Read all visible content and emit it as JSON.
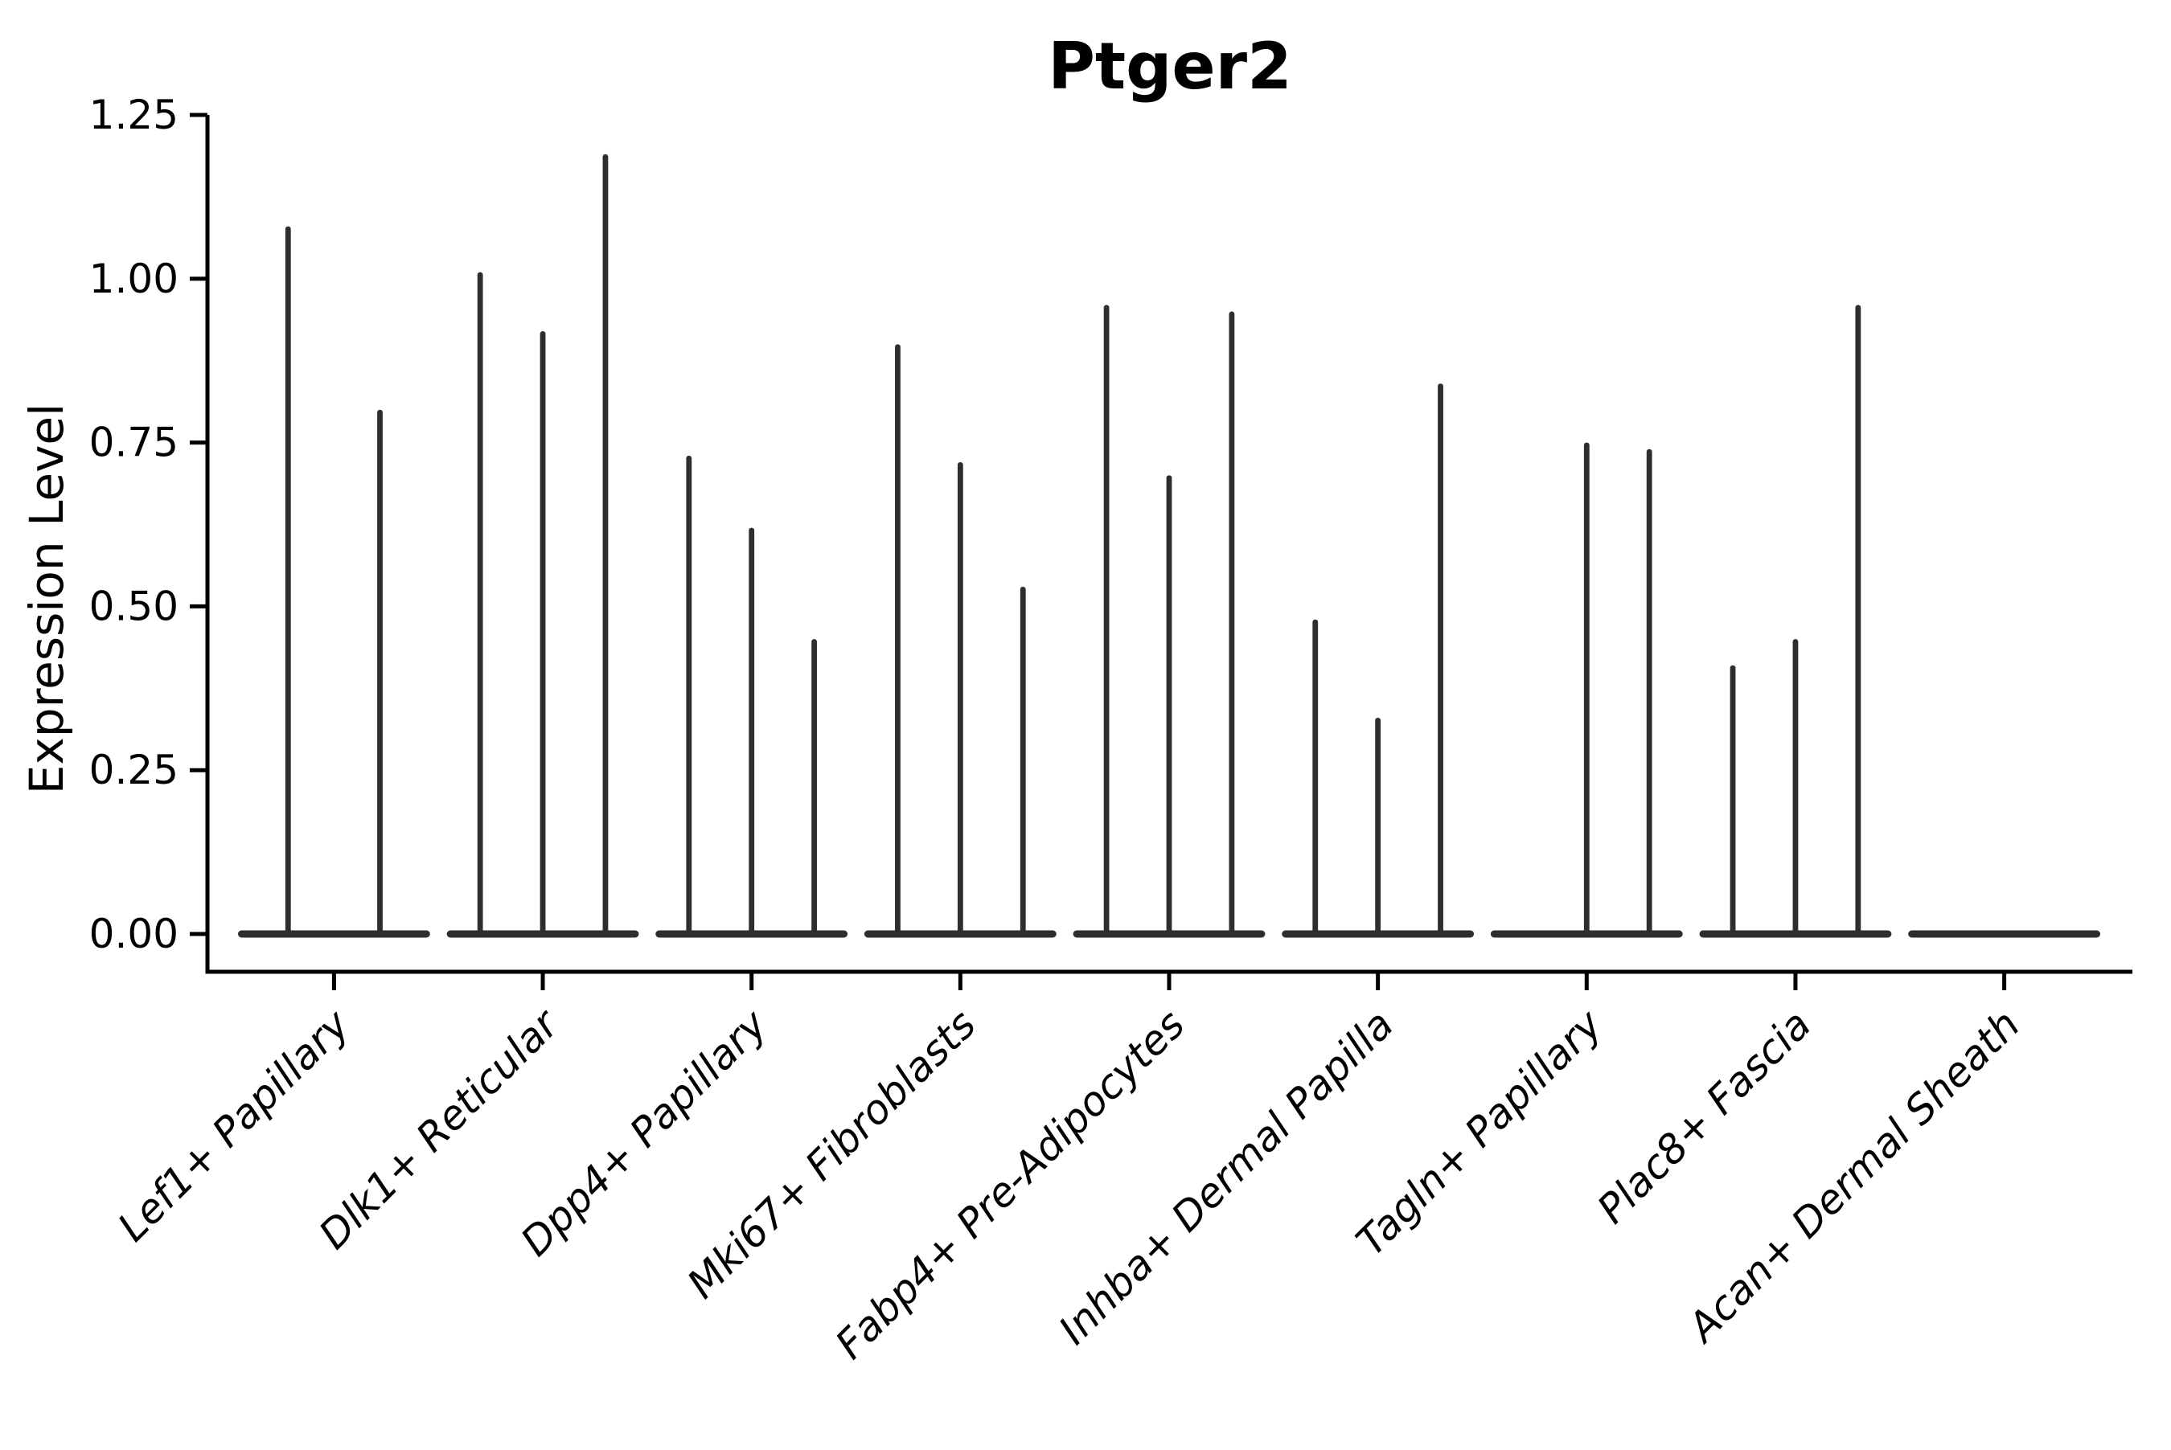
{
  "figure": {
    "title": "Ptger2"
  },
  "chart_data": {
    "type": "violin",
    "title": "Ptger2",
    "xlabel": "",
    "ylabel": "Expression Level",
    "ylim": [
      0,
      1.25
    ],
    "yticks": [
      0,
      0.25,
      0.5,
      0.75,
      1.0,
      1.25
    ],
    "ytick_labels": [
      "0.00",
      "0.25",
      "0.50",
      "0.75",
      "1.00",
      "1.25"
    ],
    "grid": false,
    "legend": "none",
    "violin_color": "#2e2e2e",
    "axis_color": "#000000",
    "categories": [
      "Lef1+ Papillary",
      "Dlk1+ Reticular",
      "Dpp4+ Papillary",
      "Mki67+ Fibroblasts",
      "Fabp4+ Pre-Adipocytes",
      "Inhba+ Dermal Papilla",
      "Tagln+ Papillary",
      "Plac8+ Fascia",
      "Acan+ Dermal Sheath"
    ],
    "groups": [
      {
        "category": "Lef1+ Papillary",
        "violins": [
          {
            "offset": -0.22,
            "peak": 1.08
          },
          {
            "offset": 0.22,
            "peak": 0.8
          }
        ]
      },
      {
        "category": "Dlk1+ Reticular",
        "violins": [
          {
            "offset": -0.3,
            "peak": 1.01
          },
          {
            "offset": 0.0,
            "peak": 0.92
          },
          {
            "offset": 0.3,
            "peak": 1.19
          }
        ]
      },
      {
        "category": "Dpp4+ Papillary",
        "violins": [
          {
            "offset": -0.3,
            "peak": 0.73
          },
          {
            "offset": 0.0,
            "peak": 0.62
          },
          {
            "offset": 0.3,
            "peak": 0.45
          }
        ]
      },
      {
        "category": "Mki67+ Fibroblasts",
        "violins": [
          {
            "offset": -0.3,
            "peak": 0.9
          },
          {
            "offset": 0.0,
            "peak": 0.72
          },
          {
            "offset": 0.3,
            "peak": 0.53
          }
        ]
      },
      {
        "category": "Fabp4+ Pre-Adipocytes",
        "violins": [
          {
            "offset": -0.3,
            "peak": 0.96
          },
          {
            "offset": 0.0,
            "peak": 0.7
          },
          {
            "offset": 0.3,
            "peak": 0.95
          }
        ]
      },
      {
        "category": "Inhba+ Dermal Papilla",
        "violins": [
          {
            "offset": -0.3,
            "peak": 0.48
          },
          {
            "offset": 0.0,
            "peak": 0.33
          },
          {
            "offset": 0.3,
            "peak": 0.84
          }
        ]
      },
      {
        "category": "Tagln+ Papillary",
        "violins": [
          {
            "offset": 0.0,
            "peak": 0.75
          },
          {
            "offset": 0.3,
            "peak": 0.74
          }
        ]
      },
      {
        "category": "Plac8+ Fascia",
        "violins": [
          {
            "offset": -0.3,
            "peak": 0.41
          },
          {
            "offset": 0.0,
            "peak": 0.45
          },
          {
            "offset": 0.3,
            "peak": 0.96
          }
        ]
      },
      {
        "category": "Acan+ Dermal Sheath",
        "violins": []
      }
    ],
    "base_half_width": 0.46
  }
}
